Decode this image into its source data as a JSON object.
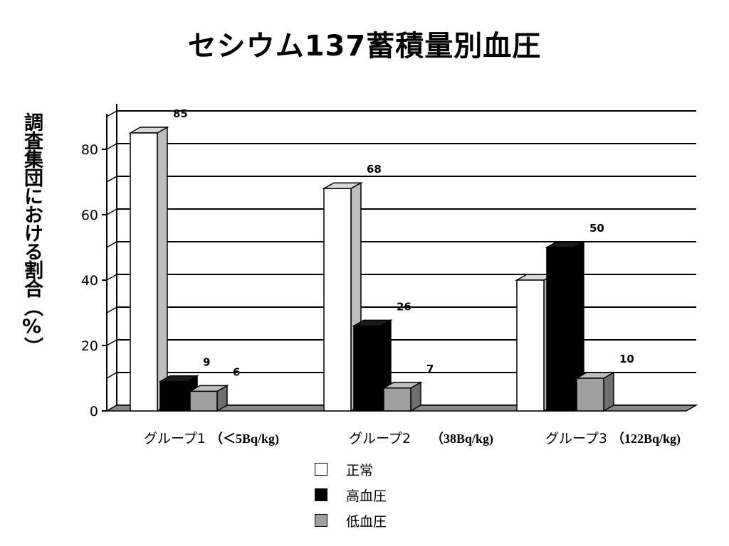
{
  "chart_data": {
    "type": "bar",
    "title": "セシウム137蓄積量別血圧",
    "ylabel": "調査集団における割合（%）",
    "xlabel": "",
    "ylim": [
      0,
      90
    ],
    "yticks": [
      0,
      20,
      40,
      60,
      80
    ],
    "grid": true,
    "legend_position": "bottom-center",
    "categories": [
      {
        "name": "グループ1",
        "range": "（＜5Bq/kg)"
      },
      {
        "name": "グループ2",
        "range": "（38Bq/kg)"
      },
      {
        "name": "グループ3",
        "range": "（122Bq/kg)"
      }
    ],
    "series": [
      {
        "name": "正常",
        "color": "#ffffff",
        "values": [
          85,
          68,
          40
        ]
      },
      {
        "name": "高血圧",
        "color": "#000000",
        "values": [
          9,
          26,
          50
        ]
      },
      {
        "name": "低血圧",
        "color": "#a0a0a0",
        "values": [
          6,
          7,
          10
        ]
      }
    ]
  }
}
